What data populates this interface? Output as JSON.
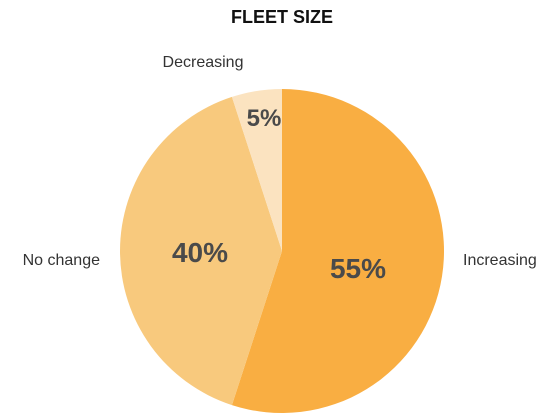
{
  "chart_data": {
    "type": "pie",
    "title": "FLEET SIZE",
    "slices": [
      {
        "label": "Increasing",
        "value": 55,
        "value_label": "55%",
        "color": "#F9AE42"
      },
      {
        "label": "No change",
        "value": 40,
        "value_label": "40%",
        "color": "#F8C97D"
      },
      {
        "label": "Decreasing",
        "value": 5,
        "value_label": "5%",
        "color": "#FBE3C0"
      }
    ],
    "start_position": "top, clockwise",
    "legend": "none",
    "label_style": "category labels outside, percentages inside"
  }
}
